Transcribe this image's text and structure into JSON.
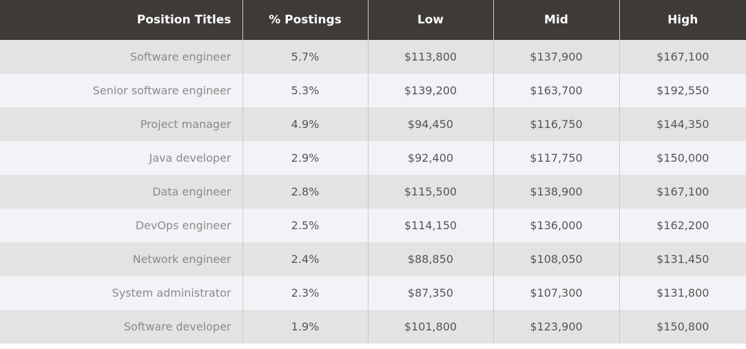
{
  "table": {
    "headers": [
      "Position Titles",
      "% Postings",
      "Low",
      "Mid",
      "High"
    ],
    "rows": [
      [
        "Software engineer",
        "5.7%",
        "$113,800",
        "$137,900",
        "$167,100"
      ],
      [
        "Senior software engineer",
        "5.3%",
        "$139,200",
        "$163,700",
        "$192,550"
      ],
      [
        "Project manager",
        "4.9%",
        "$94,450",
        "$116,750",
        "$144,350"
      ],
      [
        "Java developer",
        "2.9%",
        "$92,400",
        "$117,750",
        "$150,000"
      ],
      [
        "Data engineer",
        "2.8%",
        "$115,500",
        "$138,900",
        "$167,100"
      ],
      [
        "DevOps engineer",
        "2.5%",
        "$114,150",
        "$136,000",
        "$162,200"
      ],
      [
        "Network engineer",
        "2.4%",
        "$88,850",
        "$108,050",
        "$131,450"
      ],
      [
        "System administrator",
        "2.3%",
        "$87,350",
        "$107,300",
        "$131,800"
      ],
      [
        "Software developer",
        "1.9%",
        "$101,800",
        "$123,900",
        "$150,800"
      ]
    ]
  }
}
